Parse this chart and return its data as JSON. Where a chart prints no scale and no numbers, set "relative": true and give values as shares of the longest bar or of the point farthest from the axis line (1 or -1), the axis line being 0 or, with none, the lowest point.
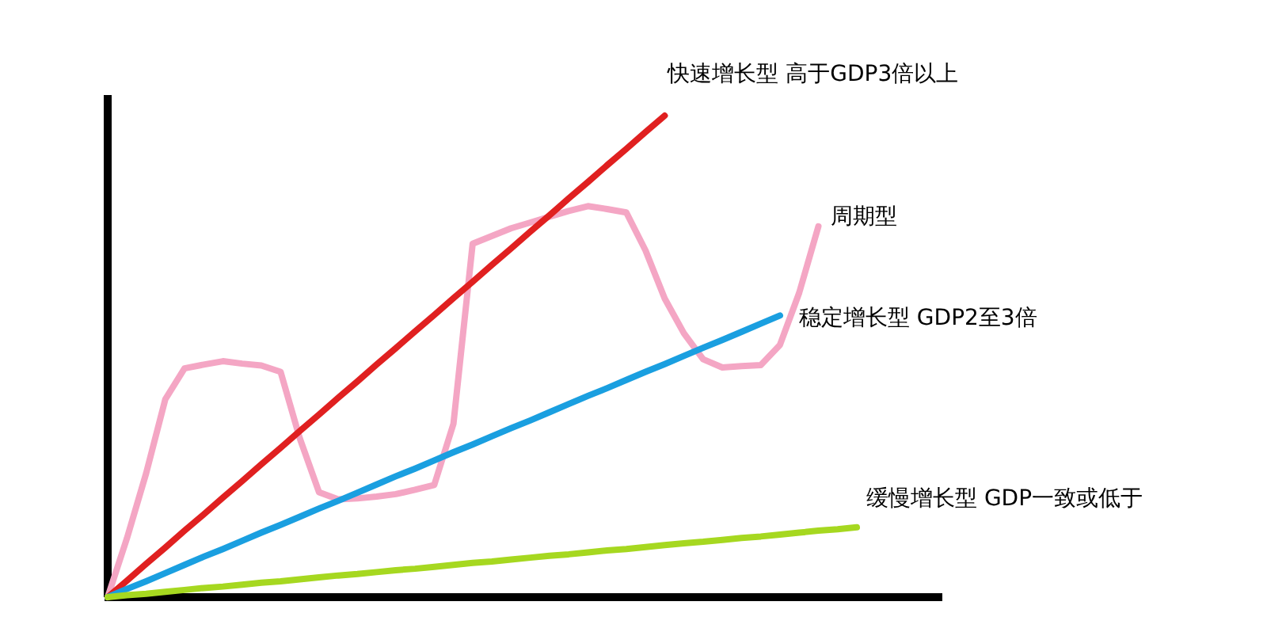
{
  "chart_data": {
    "type": "line",
    "relative": true,
    "legend": false,
    "marker": "none",
    "line_style": "solid",
    "categories": [
      null,
      null,
      null,
      null,
      null,
      null,
      null,
      null,
      null,
      null,
      null,
      null,
      null,
      null,
      null,
      null,
      null,
      null,
      null,
      null,
      null,
      null,
      null,
      null,
      null,
      null,
      null,
      null,
      null,
      null,
      null,
      null,
      null,
      null,
      null,
      null,
      null,
      null,
      null,
      null
    ],
    "series": [
      {
        "name": "快速增长型 高于GDP3倍以上",
        "color": "#e02020",
        "values": [
          0,
          0.034,
          0.069,
          0.103,
          0.138,
          0.172,
          0.207,
          0.241,
          0.276,
          0.31,
          0.345,
          0.379,
          0.414,
          0.448,
          0.483,
          0.517,
          0.552,
          0.586,
          0.621,
          0.655,
          0.69,
          0.724,
          0.759,
          0.793,
          0.828,
          0.862,
          0.897,
          0.931,
          0.966,
          1.0,
          null,
          null,
          null,
          null,
          null,
          null,
          null,
          null,
          null,
          null
        ]
      },
      {
        "name": "周期型",
        "color": "#f4a6c4",
        "values": [
          0,
          0.122,
          0.257,
          0.411,
          0.475,
          0.483,
          0.49,
          0.485,
          0.481,
          0.468,
          0.33,
          0.218,
          0.203,
          0.205,
          0.209,
          0.214,
          0.223,
          0.233,
          0.36,
          0.734,
          0.75,
          0.766,
          0.778,
          0.79,
          0.802,
          0.812,
          0.806,
          0.799,
          0.72,
          0.62,
          0.548,
          0.494,
          0.477,
          0.48,
          0.482,
          0.524,
          0.632,
          0.77,
          null,
          null
        ]
      },
      {
        "name": "稳定增长型 GDP2至3倍",
        "color": "#1a9fe0",
        "values": [
          0,
          0.017,
          0.033,
          0.05,
          0.067,
          0.084,
          0.1,
          0.117,
          0.134,
          0.15,
          0.167,
          0.184,
          0.2,
          0.217,
          0.234,
          0.251,
          0.267,
          0.284,
          0.301,
          0.317,
          0.334,
          0.351,
          0.367,
          0.384,
          0.401,
          0.418,
          0.434,
          0.451,
          0.468,
          0.484,
          0.501,
          0.518,
          0.534,
          0.551,
          0.568,
          0.585,
          null,
          null,
          null,
          null
        ]
      },
      {
        "name": "缓慢增长型 GDP一致或低于",
        "color": "#a6d820",
        "values": [
          0,
          0.004,
          0.007,
          0.011,
          0.015,
          0.019,
          0.022,
          0.026,
          0.03,
          0.033,
          0.037,
          0.041,
          0.045,
          0.048,
          0.052,
          0.056,
          0.059,
          0.063,
          0.067,
          0.071,
          0.074,
          0.078,
          0.082,
          0.086,
          0.089,
          0.093,
          0.097,
          0.1,
          0.104,
          0.108,
          0.112,
          0.115,
          0.119,
          0.123,
          0.126,
          0.13,
          0.134,
          0.138,
          0.141,
          0.145
        ]
      }
    ]
  }
}
